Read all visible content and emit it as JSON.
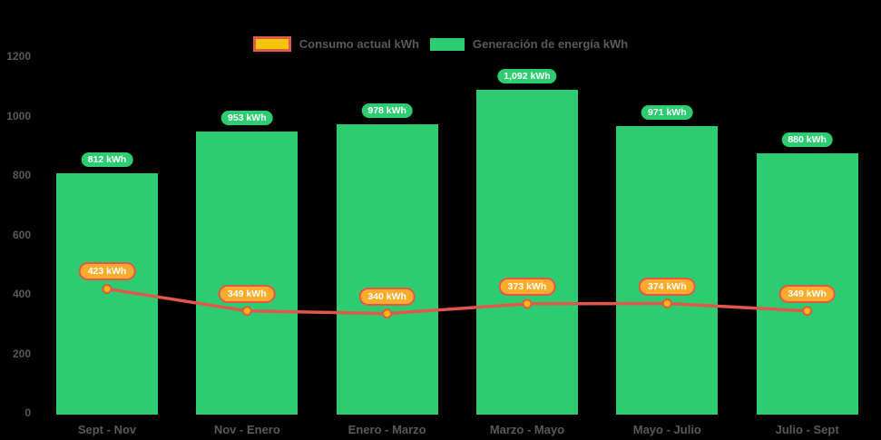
{
  "background": "#000000",
  "text_color": "#58595B",
  "legend": {
    "items": [
      {
        "id": "consumo",
        "label": "Consumo actual kWh",
        "swatch": "outlined",
        "fill": "#F2C500",
        "border": "#E2574C"
      },
      {
        "id": "generacion",
        "label": "Generación de energía kWh",
        "swatch": "solid",
        "fill": "#2ECC71",
        "border": "#2ECC71"
      }
    ]
  },
  "chart_data": {
    "type": "bar",
    "title": "",
    "xlabel": "",
    "ylabel": "",
    "categories": [
      "Sept - Nov",
      "Nov - Enero",
      "Enero - Marzo",
      "Marzo - Mayo",
      "Mayo - Julio",
      "Julio - Sept"
    ],
    "series": [
      {
        "name": "Generación de energía kWh",
        "type": "bar",
        "color": "#2ECC71",
        "label_bg": "#2ECC71",
        "label_text_color": "#FFFFFF",
        "values": [
          812,
          953,
          978,
          1092,
          971,
          880
        ],
        "labels": [
          "812 kWh",
          "953 kWh",
          "978 kWh",
          "1,092 kWh",
          "971 kWh",
          "880 kWh"
        ]
      },
      {
        "name": "Consumo actual kWh",
        "type": "line",
        "color": "#E2574C",
        "marker_fill": "#FDB90D",
        "marker_border": "#E2574C",
        "label_bg": "#FBAC2B",
        "label_border": "#E2574C",
        "label_text_color": "#FFFFFF",
        "values": [
          423,
          349,
          340,
          373,
          374,
          349
        ],
        "labels": [
          "423 kWh",
          "349 kWh",
          "340 kWh",
          "373 kWh",
          "374 kWh",
          "349 kWh"
        ]
      }
    ],
    "ylim": [
      0,
      1200
    ],
    "ytick_step": 200,
    "yticks": [
      "0",
      "200",
      "400",
      "600",
      "800",
      "1000",
      "1200"
    ],
    "grid": false,
    "legend_position": "top"
  }
}
